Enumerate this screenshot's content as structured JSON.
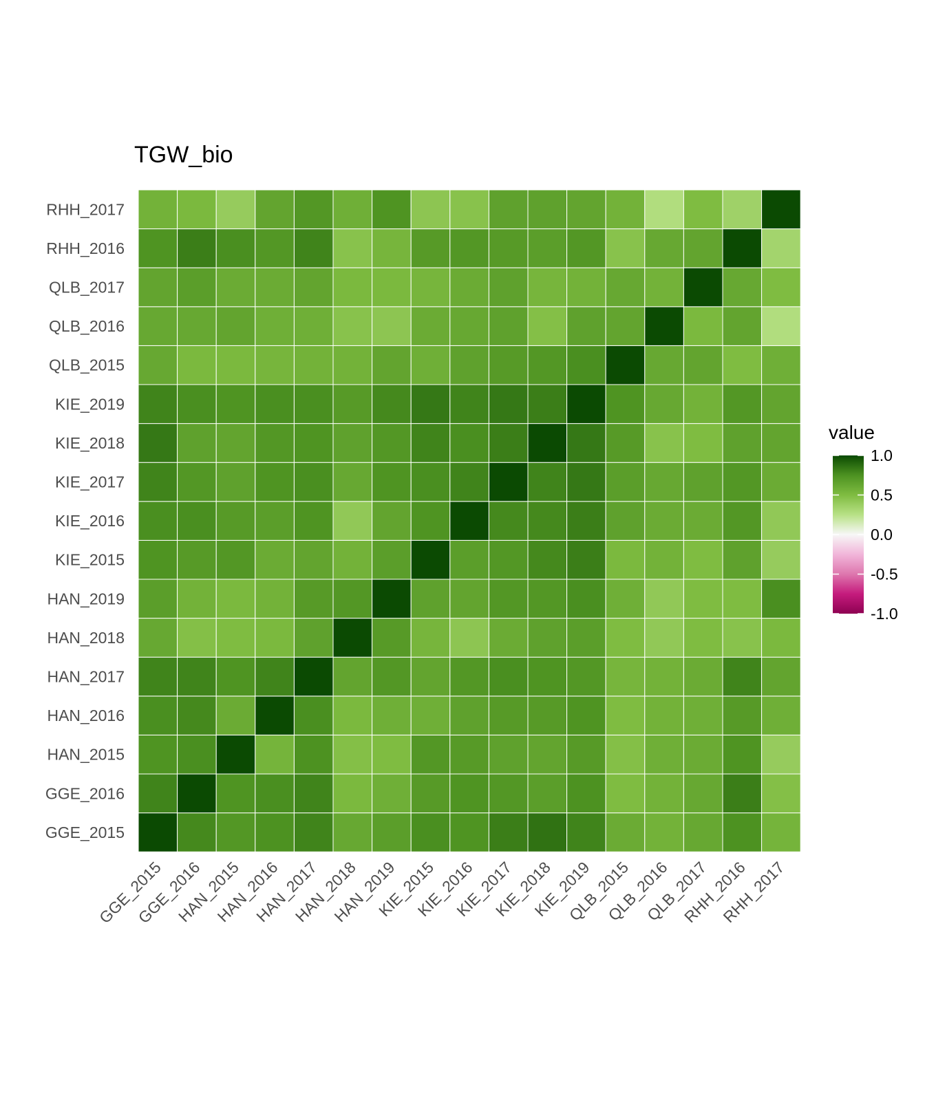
{
  "chart_data": {
    "type": "heatmap",
    "title": "TGW_bio",
    "x_categories": [
      "GGE_2015",
      "GGE_2016",
      "HAN_2015",
      "HAN_2016",
      "HAN_2017",
      "HAN_2018",
      "HAN_2019",
      "KIE_2015",
      "KIE_2016",
      "KIE_2017",
      "KIE_2018",
      "KIE_2019",
      "QLB_2015",
      "QLB_2016",
      "QLB_2017",
      "RHH_2016",
      "RHH_2017"
    ],
    "y_categories": [
      "GGE_2015",
      "GGE_2016",
      "HAN_2015",
      "HAN_2016",
      "HAN_2017",
      "HAN_2018",
      "HAN_2019",
      "KIE_2015",
      "KIE_2016",
      "KIE_2017",
      "KIE_2018",
      "KIE_2019",
      "QLB_2015",
      "QLB_2016",
      "QLB_2017",
      "RHH_2016",
      "RHH_2017"
    ],
    "matrix": [
      [
        1.0,
        0.78,
        0.72,
        0.75,
        0.8,
        0.62,
        0.68,
        0.76,
        0.74,
        0.82,
        0.86,
        0.8,
        0.6,
        0.56,
        0.62,
        0.75,
        0.55
      ],
      [
        0.8,
        1.0,
        0.74,
        0.76,
        0.8,
        0.52,
        0.58,
        0.7,
        0.74,
        0.72,
        0.68,
        0.75,
        0.5,
        0.56,
        0.62,
        0.82,
        0.48
      ],
      [
        0.74,
        0.76,
        1.0,
        0.55,
        0.75,
        0.48,
        0.5,
        0.72,
        0.7,
        0.66,
        0.64,
        0.7,
        0.48,
        0.58,
        0.6,
        0.74,
        0.4
      ],
      [
        0.76,
        0.78,
        0.6,
        1.0,
        0.76,
        0.52,
        0.58,
        0.58,
        0.66,
        0.7,
        0.7,
        0.74,
        0.5,
        0.56,
        0.58,
        0.7,
        0.58
      ],
      [
        0.8,
        0.8,
        0.74,
        0.8,
        1.0,
        0.64,
        0.72,
        0.64,
        0.72,
        0.76,
        0.74,
        0.72,
        0.54,
        0.56,
        0.6,
        0.8,
        0.64
      ],
      [
        0.62,
        0.48,
        0.5,
        0.52,
        0.66,
        1.0,
        0.7,
        0.54,
        0.44,
        0.6,
        0.66,
        0.68,
        0.5,
        0.42,
        0.5,
        0.46,
        0.52
      ],
      [
        0.68,
        0.56,
        0.52,
        0.56,
        0.7,
        0.72,
        1.0,
        0.66,
        0.64,
        0.72,
        0.72,
        0.76,
        0.58,
        0.42,
        0.5,
        0.5,
        0.76
      ],
      [
        0.74,
        0.7,
        0.72,
        0.6,
        0.64,
        0.56,
        0.68,
        1.0,
        0.68,
        0.72,
        0.78,
        0.82,
        0.52,
        0.56,
        0.5,
        0.66,
        0.4
      ],
      [
        0.76,
        0.76,
        0.7,
        0.68,
        0.74,
        0.42,
        0.64,
        0.74,
        1.0,
        0.78,
        0.78,
        0.82,
        0.66,
        0.6,
        0.6,
        0.72,
        0.42
      ],
      [
        0.8,
        0.72,
        0.66,
        0.74,
        0.76,
        0.62,
        0.74,
        0.76,
        0.8,
        1.0,
        0.8,
        0.84,
        0.68,
        0.62,
        0.66,
        0.72,
        0.6
      ],
      [
        0.84,
        0.66,
        0.64,
        0.72,
        0.74,
        0.66,
        0.72,
        0.8,
        0.76,
        0.82,
        1.0,
        0.84,
        0.7,
        0.46,
        0.5,
        0.66,
        0.64
      ],
      [
        0.8,
        0.76,
        0.74,
        0.76,
        0.76,
        0.7,
        0.78,
        0.84,
        0.8,
        0.84,
        0.82,
        1.0,
        0.74,
        0.62,
        0.56,
        0.72,
        0.64
      ],
      [
        0.62,
        0.52,
        0.52,
        0.54,
        0.56,
        0.56,
        0.64,
        0.58,
        0.66,
        0.7,
        0.72,
        0.76,
        1.0,
        0.62,
        0.64,
        0.5,
        0.58
      ],
      [
        0.62,
        0.62,
        0.64,
        0.58,
        0.58,
        0.46,
        0.44,
        0.6,
        0.62,
        0.66,
        0.48,
        0.66,
        0.64,
        1.0,
        0.52,
        0.64,
        0.28
      ],
      [
        0.64,
        0.68,
        0.6,
        0.6,
        0.64,
        0.52,
        0.52,
        0.54,
        0.6,
        0.66,
        0.54,
        0.56,
        0.62,
        0.56,
        1.0,
        0.62,
        0.5
      ],
      [
        0.74,
        0.82,
        0.76,
        0.72,
        0.8,
        0.46,
        0.54,
        0.7,
        0.72,
        0.7,
        0.68,
        0.72,
        0.46,
        0.62,
        0.64,
        1.0,
        0.34
      ],
      [
        0.56,
        0.52,
        0.4,
        0.64,
        0.72,
        0.58,
        0.74,
        0.44,
        0.46,
        0.66,
        0.66,
        0.64,
        0.56,
        0.28,
        0.5,
        0.36,
        1.0
      ]
    ],
    "color_scale": {
      "name": "value",
      "domain": [
        -1,
        1
      ],
      "ticks": [
        "1.0",
        "0.5",
        "0.0",
        "-0.5",
        "-1.0"
      ],
      "tick_values": [
        1.0,
        0.5,
        0.0,
        -0.5,
        -1.0
      ],
      "stops": [
        {
          "v": -1.0,
          "color": "#8e0152"
        },
        {
          "v": -0.75,
          "color": "#c51b7d"
        },
        {
          "v": -0.5,
          "color": "#de77ae"
        },
        {
          "v": -0.25,
          "color": "#f1b6da"
        },
        {
          "v": 0.0,
          "color": "#f7f7f7"
        },
        {
          "v": 0.25,
          "color": "#b8e186"
        },
        {
          "v": 0.5,
          "color": "#7fbc41"
        },
        {
          "v": 0.75,
          "color": "#4d9221"
        },
        {
          "v": 1.0,
          "color": "#0b4a02"
        }
      ]
    },
    "grid": true,
    "legend_position": "right"
  }
}
